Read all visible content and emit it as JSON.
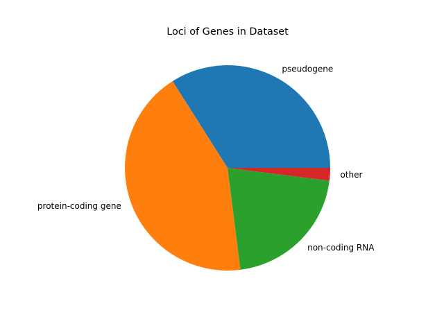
{
  "chart_data": {
    "type": "pie",
    "title": "Loci of Genes in Dataset",
    "slices": [
      {
        "label": "pseudogene",
        "value": 34,
        "color": "#1f77b4"
      },
      {
        "label": "protein-coding gene",
        "value": 43,
        "color": "#ff7f0e"
      },
      {
        "label": "non-coding RNA",
        "value": 21,
        "color": "#2ca02c"
      },
      {
        "label": "other",
        "value": 2,
        "color": "#d62728"
      }
    ],
    "start_angle_deg": 0,
    "direction": "counterclockwise",
    "legend": "none"
  }
}
